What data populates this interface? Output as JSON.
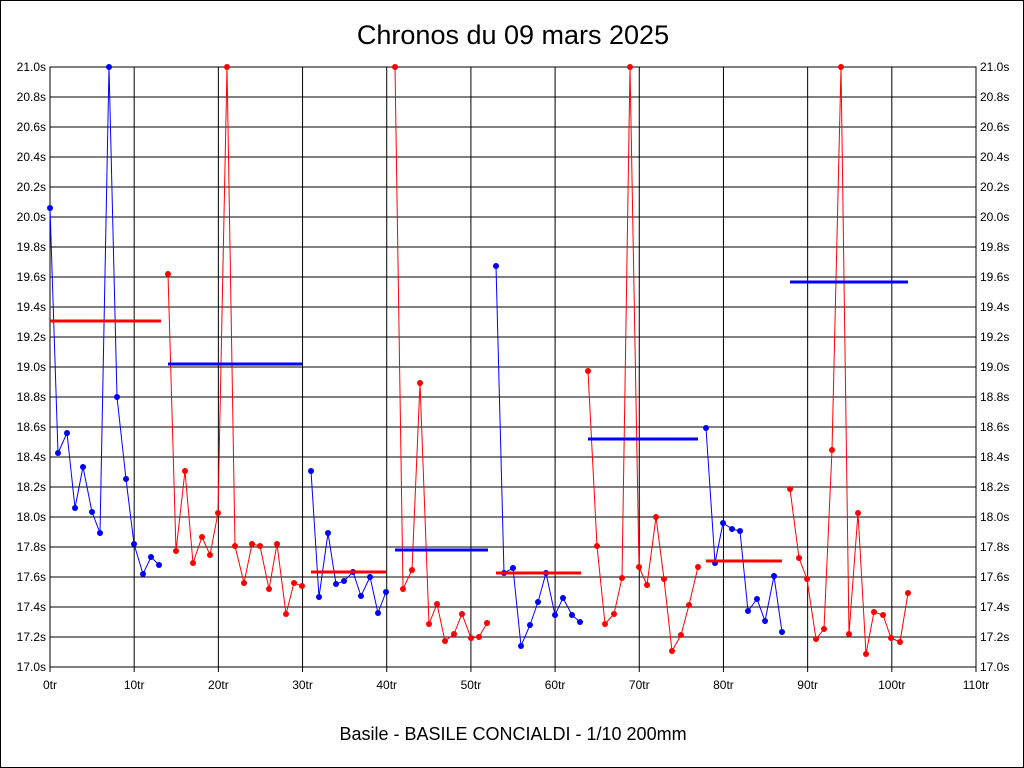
{
  "title": "Chronos du 09 mars 2025",
  "footer": "Basile - BASILE CONCIALDI - 1/10 200mm",
  "y_ticks": [
    "17.0s",
    "17.2s",
    "17.4s",
    "17.6s",
    "17.8s",
    "18.0s",
    "18.2s",
    "18.4s",
    "18.6s",
    "18.8s",
    "19.0s",
    "19.2s",
    "19.4s",
    "19.6s",
    "19.8s",
    "20.0s",
    "20.2s",
    "20.4s",
    "20.6s",
    "20.8s",
    "21.0s"
  ],
  "x_ticks": [
    "0tr",
    "10tr",
    "20tr",
    "30tr",
    "40tr",
    "50tr",
    "60tr",
    "70tr",
    "80tr",
    "90tr",
    "100tr",
    "110tr"
  ],
  "colors": {
    "series_a": "#0000ff",
    "series_b": "#ff0000",
    "grid": "#000000",
    "background": "#ffffff"
  }
}
